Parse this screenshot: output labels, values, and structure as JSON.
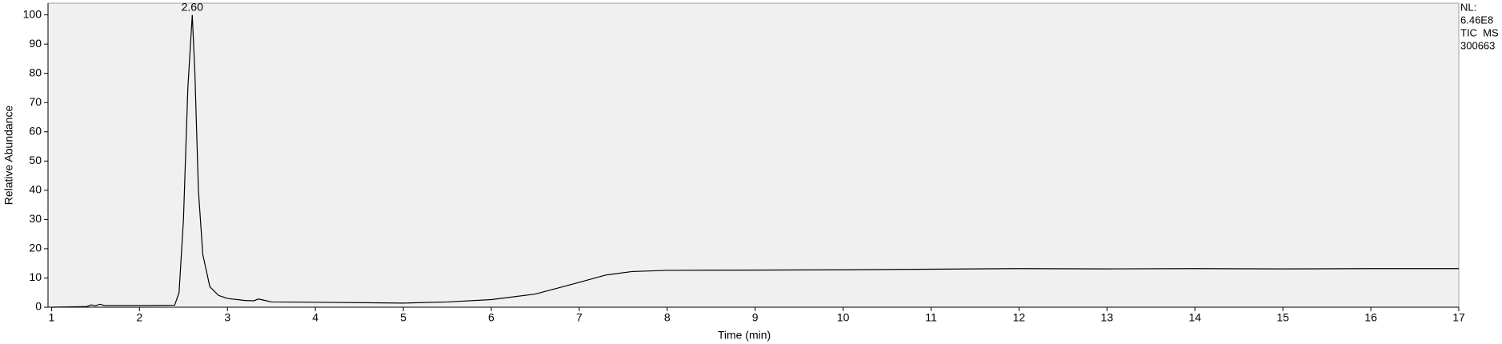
{
  "chart_data": {
    "type": "line",
    "x_label": "Time (min)",
    "y_label": "Relative Abundance",
    "x": [
      1.0,
      1.4,
      1.45,
      1.5,
      1.55,
      1.6,
      2.0,
      2.4,
      2.45,
      2.5,
      2.55,
      2.6,
      2.63,
      2.67,
      2.72,
      2.8,
      2.9,
      3.0,
      3.2,
      3.3,
      3.35,
      3.4,
      3.5,
      4.0,
      5.0,
      5.5,
      6.0,
      6.5,
      7.0,
      7.3,
      7.6,
      8.0,
      9.0,
      10,
      11,
      12,
      13,
      14,
      15,
      16,
      17
    ],
    "values": [
      0,
      0.2,
      0.8,
      0.5,
      1.0,
      0.6,
      0.6,
      0.7,
      5,
      30,
      75,
      100,
      80,
      40,
      18,
      7,
      4,
      3,
      2.3,
      2.2,
      2.8,
      2.5,
      1.8,
      1.7,
      1.4,
      1.8,
      2.6,
      4.5,
      8.5,
      11,
      12.2,
      12.6,
      12.7,
      12.8,
      13,
      13.2,
      13.1,
      13.2,
      13.1,
      13.2,
      13.2
    ],
    "color": "#000000",
    "peak_labels": [
      {
        "value": 2.6,
        "label": "2.60"
      }
    ],
    "side_text": [
      "NL:",
      "6.46E8",
      "TIC  MS",
      "300663"
    ],
    "xlim": [
      0.96,
      17
    ],
    "ylim": [
      0,
      104
    ],
    "xticks": [
      1,
      2,
      3,
      4,
      5,
      6,
      7,
      8,
      9,
      10,
      11,
      12,
      13,
      14,
      15,
      16,
      17
    ],
    "yticks": [
      0,
      10,
      20,
      30,
      40,
      50,
      60,
      70,
      80,
      90,
      100
    ],
    "grid": false,
    "background": "#f0f0f0"
  }
}
